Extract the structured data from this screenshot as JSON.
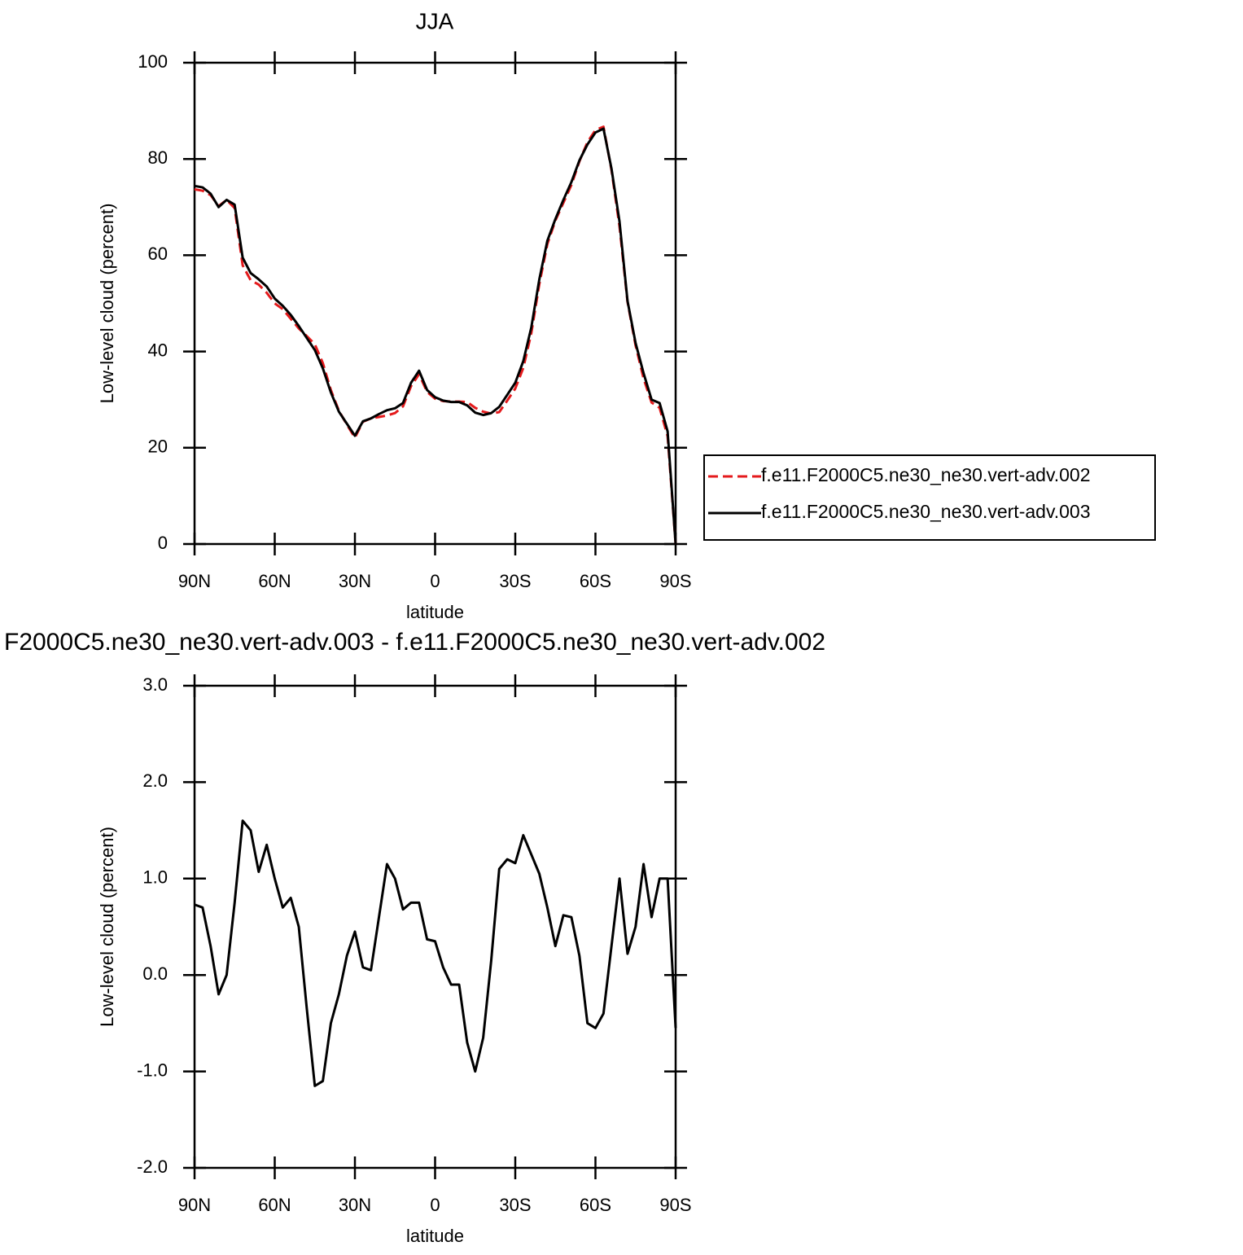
{
  "chart_data": [
    {
      "type": "line",
      "title": "JJA",
      "x_label": "latitude",
      "y_label": "Low-level cloud (percent)",
      "x": [
        90,
        87,
        84,
        81,
        78,
        75,
        72,
        69,
        66,
        63,
        60,
        57,
        54,
        51,
        48,
        45,
        42,
        39,
        36,
        33,
        30,
        27,
        24,
        21,
        18,
        15,
        12,
        9,
        6,
        3,
        0,
        -3,
        -6,
        -9,
        -12,
        -15,
        -18,
        -21,
        -24,
        -27,
        -30,
        -33,
        -36,
        -39,
        -42,
        -45,
        -48,
        -51,
        -54,
        -57,
        -60,
        -63,
        -66,
        -69,
        -72,
        -75,
        -78,
        -81,
        -84,
        -87,
        -90
      ],
      "xlim": [
        90,
        -90
      ],
      "xticks": [
        {
          "value": 90,
          "label": "90N"
        },
        {
          "value": 60,
          "label": "60N"
        },
        {
          "value": 30,
          "label": "30N"
        },
        0,
        {
          "value": -30,
          "label": "30S"
        },
        {
          "value": -60,
          "label": "60S"
        },
        {
          "value": -90,
          "label": "90S"
        }
      ],
      "ylim": [
        0,
        100
      ],
      "yticks": [
        0,
        20,
        40,
        60,
        80,
        100
      ],
      "legend": "outside-right",
      "series": [
        {
          "name": "f.e11.F2000C5.ne30_ne30.vert-adv.002",
          "color": "#e41a1c",
          "line_style": "dashed",
          "values": [
            73.7,
            73.4,
            72.5,
            70.2,
            71.5,
            69.8,
            57.9,
            54.8,
            53.9,
            52.2,
            50,
            48.8,
            46.8,
            44.8,
            43.2,
            41.5,
            37.6,
            32,
            27.7,
            24.8,
            22.1,
            25.4,
            26.1,
            26.4,
            26.7,
            27.2,
            28.6,
            32.8,
            35.3,
            31.6,
            30.2,
            29.7,
            29.6,
            29.6,
            29.5,
            28.3,
            27.5,
            27.1,
            27.4,
            29.8,
            32.3,
            36.6,
            43.8,
            54,
            62.3,
            67.2,
            70.9,
            74.6,
            79.5,
            83.5,
            86,
            86.7,
            77.7,
            66,
            50.3,
            41.3,
            34.4,
            29.4,
            28.3,
            22.4,
            0
          ]
        },
        {
          "name": "f.e11.F2000C5.ne30_ne30.vert-adv.003",
          "color": "#000000",
          "line_style": "solid",
          "values": [
            74.4,
            74.1,
            72.8,
            70,
            71.5,
            70.5,
            59.5,
            56.3,
            55,
            53.5,
            51,
            49.5,
            47.6,
            45.3,
            42.8,
            40.3,
            36.5,
            31.5,
            27.5,
            25,
            22.5,
            25.5,
            26.1,
            27,
            27.8,
            28.2,
            29.3,
            33.5,
            36,
            32,
            30.5,
            29.8,
            29.5,
            29.5,
            28.8,
            27.3,
            26.8,
            27.2,
            28.5,
            31,
            33.5,
            38,
            45,
            55,
            63,
            67.5,
            71.5,
            75.2,
            79.7,
            83,
            85.5,
            86.3,
            78,
            67,
            50.5,
            41.8,
            35.5,
            30,
            29.3,
            23.4,
            0
          ]
        }
      ]
    },
    {
      "type": "line",
      "title": "F2000C5.ne30_ne30.vert-adv.003 - f.e11.F2000C5.ne30_ne30.vert-adv.002",
      "x_label": "latitude",
      "y_label": "Low-level cloud (percent)",
      "x": [
        90,
        87,
        84,
        81,
        78,
        75,
        72,
        69,
        66,
        63,
        60,
        57,
        54,
        51,
        48,
        45,
        42,
        39,
        36,
        33,
        30,
        27,
        24,
        21,
        18,
        15,
        12,
        9,
        6,
        3,
        0,
        -3,
        -6,
        -9,
        -12,
        -15,
        -18,
        -21,
        -24,
        -27,
        -30,
        -33,
        -36,
        -39,
        -42,
        -45,
        -48,
        -51,
        -54,
        -57,
        -60,
        -63,
        -66,
        -69,
        -72,
        -75,
        -78,
        -81,
        -84,
        -87,
        -90
      ],
      "xlim": [
        90,
        -90
      ],
      "xticks": [
        {
          "value": 90,
          "label": "90N"
        },
        {
          "value": 60,
          "label": "60N"
        },
        {
          "value": 30,
          "label": "30N"
        },
        0,
        {
          "value": -30,
          "label": "30S"
        },
        {
          "value": -60,
          "label": "60S"
        },
        {
          "value": -90,
          "label": "90S"
        }
      ],
      "ylim": [
        -2,
        3
      ],
      "yticks": [
        {
          "value": -2,
          "label": "-2.0"
        },
        {
          "value": -1,
          "label": "-1.0"
        },
        {
          "value": 0,
          "label": "0.0"
        },
        {
          "value": 1,
          "label": "1.0"
        },
        {
          "value": 2,
          "label": "2.0"
        },
        {
          "value": 3,
          "label": "3.0"
        }
      ],
      "color": "#000000",
      "values": [
        0.73,
        0.7,
        0.3,
        -0.2,
        0,
        0.75,
        1.6,
        1.5,
        1.07,
        1.35,
        1,
        0.7,
        0.8,
        0.5,
        -0.35,
        -1.15,
        -1.1,
        -0.5,
        -0.2,
        0.2,
        0.45,
        0.08,
        0.05,
        0.6,
        1.15,
        1,
        0.68,
        0.75,
        0.75,
        0.37,
        0.35,
        0.08,
        -0.1,
        -0.1,
        -0.7,
        -1,
        -0.65,
        0.15,
        1.1,
        1.2,
        1.16,
        1.45,
        1.25,
        1.05,
        0.7,
        0.3,
        0.62,
        0.6,
        0.2,
        -0.5,
        -0.55,
        -0.4,
        0.3,
        1,
        0.22,
        0.5,
        1.15,
        0.6,
        1,
        1,
        -0.55
      ]
    }
  ]
}
